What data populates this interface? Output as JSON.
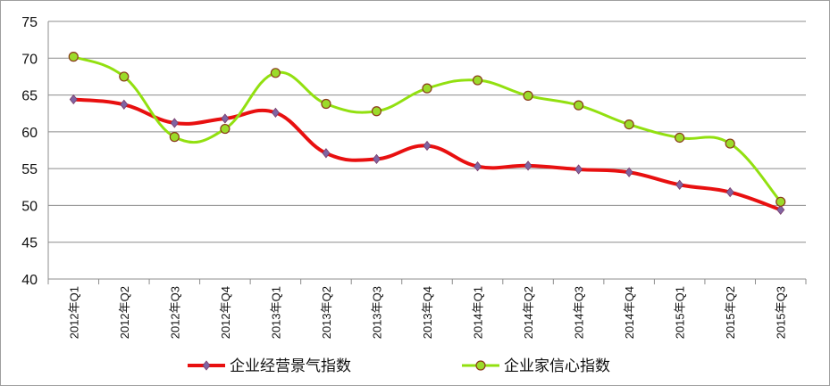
{
  "chart_data": {
    "type": "line",
    "title": "",
    "xlabel": "",
    "ylabel": "",
    "ylim": [
      40,
      75
    ],
    "y_ticks": [
      "40",
      "45",
      "50",
      "55",
      "60",
      "65",
      "70",
      "75"
    ],
    "categories": [
      "2012年Q1",
      "2012年Q2",
      "2012年Q3",
      "2012年Q4",
      "2013年Q1",
      "2013年Q2",
      "2013年Q3",
      "2013年Q4",
      "2014年Q1",
      "2014年Q2",
      "2014年Q3",
      "2014年Q4",
      "2015年Q1",
      "2015年Q2",
      "2015年Q3"
    ],
    "grid": true,
    "legend_position": "bottom",
    "series": [
      {
        "name": "企业经营景气指数",
        "color": "#e81010",
        "marker_color": "#8064a2",
        "marker": "diamond",
        "values": [
          64.4,
          63.7,
          61.2,
          61.8,
          62.6,
          57.1,
          56.3,
          58.1,
          55.3,
          55.4,
          54.9,
          54.5,
          52.8,
          51.8,
          49.4
        ]
      },
      {
        "name": "企业家信心指数",
        "color": "#92e010",
        "marker_color": "#9bdb2a",
        "marker": "circle",
        "values": [
          70.2,
          67.5,
          59.3,
          60.4,
          68.0,
          63.8,
          62.8,
          65.9,
          67.0,
          64.9,
          63.6,
          61.0,
          59.2,
          58.4,
          50.5
        ]
      }
    ]
  }
}
